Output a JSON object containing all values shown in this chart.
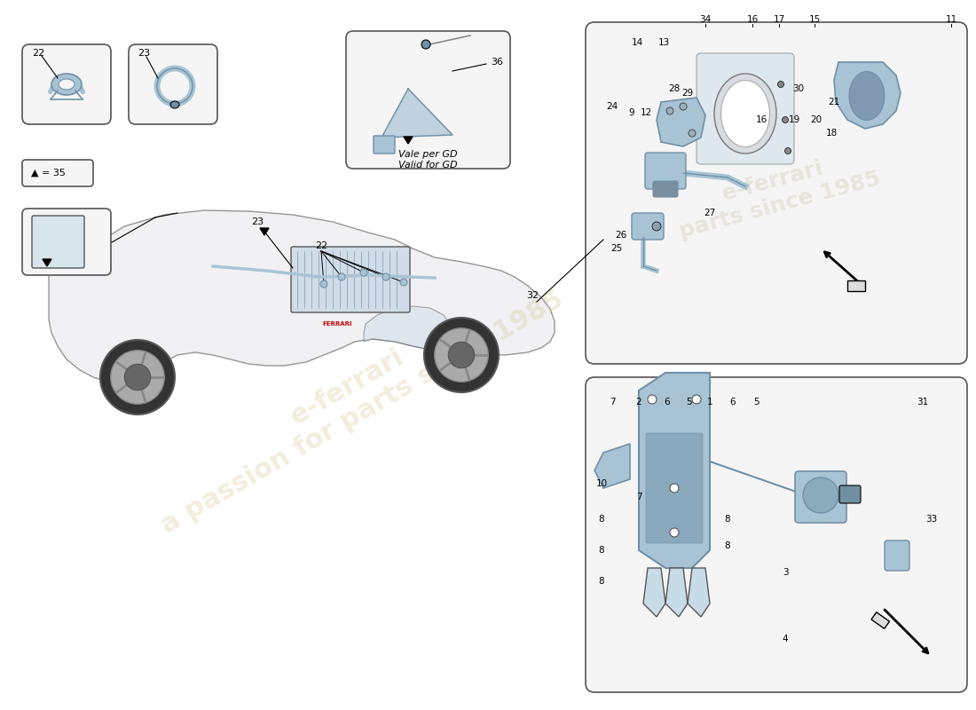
{
  "bg_color": "#ffffff",
  "watermark_text": "a passion for parts since 1985",
  "watermark_color": "#d4c87a",
  "watermark_alpha": 0.5,
  "part_color_blue": "#a8c4d4",
  "part_color_light": "#c8dce8",
  "part_color_dark": "#7090a8",
  "outline_color": "#000000",
  "box_bg": "#f8f8f8",
  "box_border": "#555555",
  "legend_text": "▲ = 35",
  "note_text1": "Vale per GD",
  "note_text2": "Valid for GD",
  "part_36_label": "36",
  "part_22_label": "22",
  "part_23_label": "23",
  "part_32_label": "32",
  "top_right_labels": [
    "34",
    "16",
    "17",
    "15",
    "11",
    "14",
    "13",
    "30",
    "21",
    "28",
    "29",
    "20",
    "16",
    "19",
    "18",
    "24",
    "9",
    "12",
    "27",
    "26",
    "25"
  ],
  "bottom_right_labels": [
    "7",
    "2",
    "6",
    "5",
    "1",
    "6",
    "5",
    "31",
    "10",
    "8",
    "7",
    "8",
    "8",
    "3",
    "4",
    "33"
  ],
  "arrow_color": "#333333",
  "title_font_size": 8
}
